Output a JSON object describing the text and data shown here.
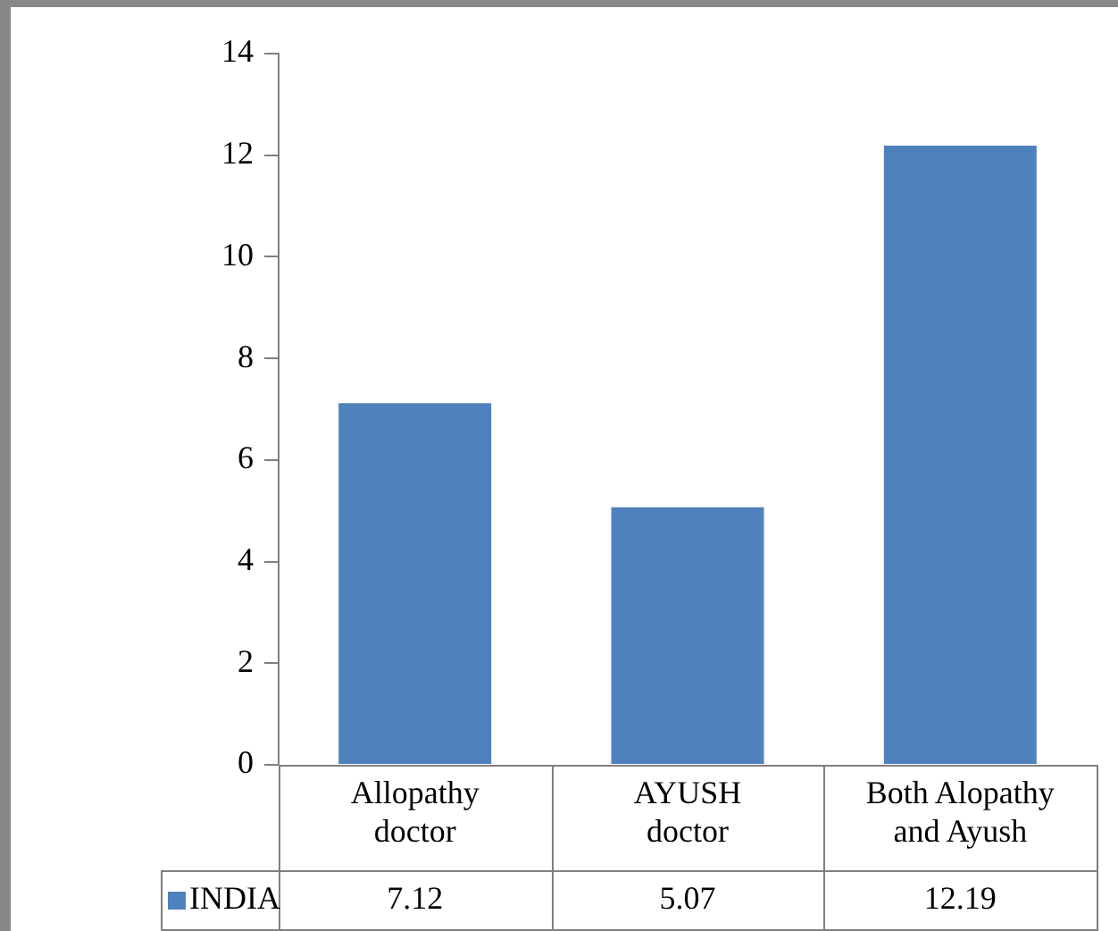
{
  "chart_data": {
    "type": "bar",
    "categories": [
      "Allopathy doctor",
      "AYUSH doctor",
      "Both Alopathy and Ayush"
    ],
    "series": [
      {
        "name": "INDIA",
        "color": "#4f81bd",
        "values": [
          7.12,
          5.07,
          12.19
        ]
      }
    ],
    "ylim": [
      0,
      14
    ],
    "yticks": [
      0,
      2,
      4,
      6,
      8,
      10,
      12,
      14
    ],
    "grid": false,
    "legend": "bottom",
    "data_labels": true
  }
}
